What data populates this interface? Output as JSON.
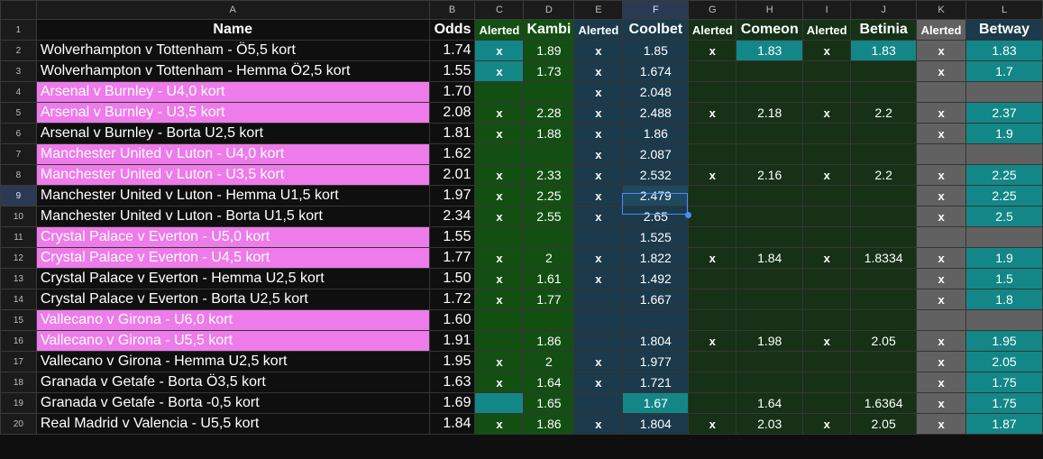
{
  "columns": [
    "A",
    "B",
    "C",
    "D",
    "E",
    "F",
    "G",
    "H",
    "I",
    "J",
    "K",
    "L"
  ],
  "selected_column": "F",
  "selected_row": 9,
  "header_row": {
    "num": 1,
    "cells": [
      "Name",
      "Odds",
      "Alerted",
      "Kambi",
      "Alerted",
      "Coolbet",
      "Alerted",
      "Comeon",
      "Alerted",
      "Betinia",
      "Alerted",
      "Betway"
    ]
  },
  "colors": {
    "name_pink": "#ee7bea",
    "name_dark": "#0f0f0f",
    "green_col": "#134f13",
    "green_col_dark": "#163116",
    "blue_col": "#1b3a4b",
    "gray_col": "#616161",
    "teal_hi": "#138787",
    "coolbet_hi": "#1d4a5f"
  },
  "rows": [
    {
      "num": 2,
      "pink": false,
      "name": "Wolverhampton v Tottenham - Ö5,5 kort",
      "odds": "1.74",
      "c": "x",
      "d": "1.89",
      "e": "x",
      "f": "1.85",
      "g": "x",
      "h": "1.83",
      "i": "x",
      "j": "1.83",
      "k": "x",
      "l": "1.83",
      "hi": [
        "C",
        "H",
        "J",
        "L"
      ]
    },
    {
      "num": 3,
      "pink": false,
      "name": "Wolverhampton v Tottenham - Hemma Ö2,5 kort",
      "odds": "1.55",
      "c": "x",
      "d": "1.73",
      "e": "x",
      "f": "1.674",
      "g": "",
      "h": "",
      "i": "",
      "j": "",
      "k": "x",
      "l": "1.7",
      "hi": [
        "C",
        "L"
      ]
    },
    {
      "num": 4,
      "pink": true,
      "name": "Arsenal v Burnley - U4,0 kort",
      "odds": "1.70",
      "c": "",
      "d": "",
      "e": "x",
      "f": "2.048",
      "g": "",
      "h": "",
      "i": "",
      "j": "",
      "k": "",
      "l": "",
      "hi": []
    },
    {
      "num": 5,
      "pink": true,
      "name": "Arsenal v Burnley - U3,5 kort",
      "odds": "2.08",
      "c": "x",
      "d": "2.28",
      "e": "x",
      "f": "2.488",
      "g": "x",
      "h": "2.18",
      "i": "x",
      "j": "2.2",
      "k": "x",
      "l": "2.37",
      "hi": [
        "L"
      ]
    },
    {
      "num": 6,
      "pink": false,
      "name": "Arsenal v Burnley - Borta U2,5 kort",
      "odds": "1.81",
      "c": "x",
      "d": "1.88",
      "e": "x",
      "f": "1.86",
      "g": "",
      "h": "",
      "i": "",
      "j": "",
      "k": "x",
      "l": "1.9",
      "hi": [
        "L"
      ]
    },
    {
      "num": 7,
      "pink": true,
      "name": "Manchester United  v Luton - U4,0 kort",
      "odds": "1.62",
      "c": "",
      "d": "",
      "e": "x",
      "f": "2.087",
      "g": "",
      "h": "",
      "i": "",
      "j": "",
      "k": "",
      "l": "",
      "hi": []
    },
    {
      "num": 8,
      "pink": true,
      "name": "Manchester United  v Luton - U3,5 kort",
      "odds": "2.01",
      "c": "x",
      "d": "2.33",
      "e": "x",
      "f": "2.532",
      "g": "x",
      "h": "2.16",
      "i": "x",
      "j": "2.2",
      "k": "x",
      "l": "2.25",
      "hi": [
        "L"
      ]
    },
    {
      "num": 9,
      "pink": false,
      "name": "Manchester United  v Luton - Hemma U1,5 kort",
      "odds": "1.97",
      "c": "x",
      "d": "2.25",
      "e": "x",
      "f": "2.479",
      "g": "",
      "h": "",
      "i": "",
      "j": "",
      "k": "x",
      "l": "2.25",
      "hi": [
        "L"
      ]
    },
    {
      "num": 10,
      "pink": false,
      "name": "Manchester United  v Luton - Borta U1,5 kort",
      "odds": "2.34",
      "c": "x",
      "d": "2.55",
      "e": "x",
      "f": "2.65",
      "g": "",
      "h": "",
      "i": "",
      "j": "",
      "k": "x",
      "l": "2.5",
      "hi": [
        "L"
      ]
    },
    {
      "num": 11,
      "pink": true,
      "name": "Crystal Palace v Everton - U5,0 kort",
      "odds": "1.55",
      "c": "",
      "d": "",
      "e": "",
      "f": "1.525",
      "g": "",
      "h": "",
      "i": "",
      "j": "",
      "k": "",
      "l": "",
      "hi": []
    },
    {
      "num": 12,
      "pink": true,
      "name": "Crystal Palace v Everton - U4,5 kort",
      "odds": "1.77",
      "c": "x",
      "d": "2",
      "e": "x",
      "f": "1.822",
      "g": "x",
      "h": "1.84",
      "i": "x",
      "j": "1.8334",
      "k": "x",
      "l": "1.9",
      "hi": [
        "L"
      ]
    },
    {
      "num": 13,
      "pink": false,
      "name": "Crystal Palace v Everton - Hemma U2,5 kort",
      "odds": "1.50",
      "c": "x",
      "d": "1.61",
      "e": "x",
      "f": "1.492",
      "g": "",
      "h": "",
      "i": "",
      "j": "",
      "k": "x",
      "l": "1.5",
      "hi": [
        "L"
      ]
    },
    {
      "num": 14,
      "pink": false,
      "name": "Crystal Palace v Everton - Borta U2,5 kort",
      "odds": "1.72",
      "c": "x",
      "d": "1.77",
      "e": "",
      "f": "1.667",
      "g": "",
      "h": "",
      "i": "",
      "j": "",
      "k": "x",
      "l": "1.8",
      "hi": [
        "L"
      ]
    },
    {
      "num": 15,
      "pink": true,
      "name": "Vallecano v Girona - U6,0 kort",
      "odds": "1.60",
      "c": "",
      "d": "",
      "e": "",
      "f": "",
      "g": "",
      "h": "",
      "i": "",
      "j": "",
      "k": "",
      "l": "",
      "hi": []
    },
    {
      "num": 16,
      "pink": true,
      "name": "Vallecano v Girona - U5,5 kort",
      "odds": "1.91",
      "c": "",
      "d": "1.86",
      "e": "",
      "f": "1.804",
      "g": "x",
      "h": "1.98",
      "i": "x",
      "j": "2.05",
      "k": "x",
      "l": "1.95",
      "hi": [
        "L"
      ]
    },
    {
      "num": 17,
      "pink": false,
      "name": "Vallecano v Girona - Hemma U2,5 kort",
      "odds": "1.95",
      "c": "x",
      "d": "2",
      "e": "x",
      "f": "1.977",
      "g": "",
      "h": "",
      "i": "",
      "j": "",
      "k": "x",
      "l": "2.05",
      "hi": [
        "L"
      ]
    },
    {
      "num": 18,
      "pink": false,
      "name": "Granada v Getafe - Borta Ö3,5 kort",
      "odds": "1.63",
      "c": "x",
      "d": "1.64",
      "e": "x",
      "f": "1.721",
      "g": "",
      "h": "",
      "i": "",
      "j": "",
      "k": "x",
      "l": "1.75",
      "hi": [
        "L"
      ]
    },
    {
      "num": 19,
      "pink": false,
      "name": "Granada v Getafe - Borta -0,5 kort",
      "odds": "1.69",
      "c": "",
      "d": "1.65",
      "e": "",
      "f": "1.67",
      "g": "",
      "h": "1.64",
      "i": "",
      "j": "1.6364",
      "k": "x",
      "l": "1.75",
      "hi": [
        "C",
        "F",
        "L"
      ]
    },
    {
      "num": 20,
      "pink": false,
      "name": "Real Madrid v Valencia - U5,5 kort",
      "odds": "1.84",
      "c": "x",
      "d": "1.86",
      "e": "x",
      "f": "1.804",
      "g": "x",
      "h": "2.03",
      "i": "x",
      "j": "2.05",
      "k": "x",
      "l": "1.87",
      "hi": [
        "L"
      ]
    }
  ]
}
